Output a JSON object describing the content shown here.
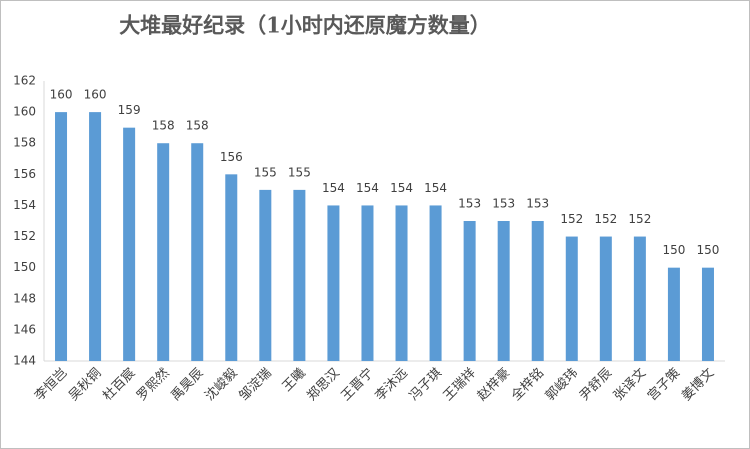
{
  "chart_data": {
    "type": "bar",
    "title": "大堆最好纪录（1小时内还原魔方数量）",
    "categories": [
      "李恒岂",
      "吴秋铜",
      "杜百宸",
      "罗熙然",
      "禹昊辰",
      "沈峻毅",
      "邹淀瑞",
      "王曦",
      "郑思汉",
      "王晋宁",
      "李沐远",
      "冯子琪",
      "王瑞祥",
      "赵梓豪",
      "全梓铭",
      "郭峻玮",
      "尹舒辰",
      "张译文",
      "宫子策",
      "姜博文"
    ],
    "values": [
      160,
      160,
      159,
      158,
      158,
      156,
      155,
      155,
      154,
      154,
      154,
      154,
      153,
      153,
      153,
      152,
      152,
      152,
      150,
      150
    ],
    "color": "#5b9bd5",
    "ylim": [
      144,
      162
    ],
    "yticks": [
      144,
      146,
      148,
      150,
      152,
      154,
      156,
      158,
      160,
      162
    ],
    "grid": false
  }
}
